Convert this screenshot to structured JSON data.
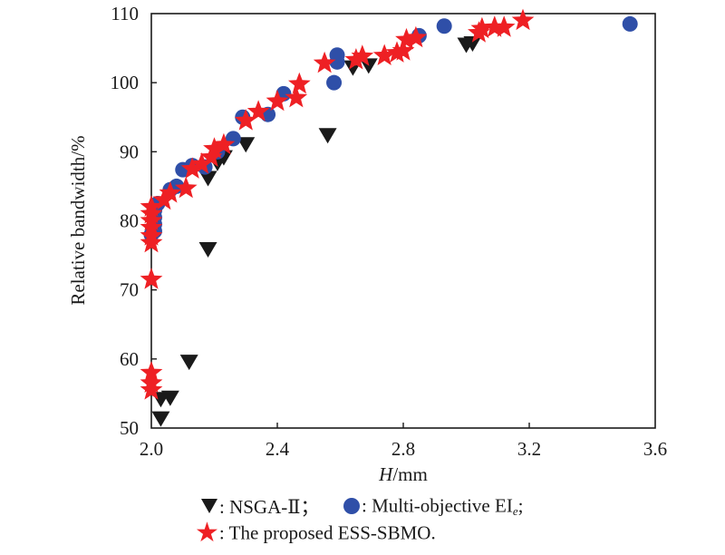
{
  "chart_data": {
    "type": "scatter",
    "title": "",
    "xlabel_italic": "H",
    "xlabel_rest": "/mm",
    "ylabel": "Relative bandwidth/%",
    "xlim": [
      2.0,
      3.6
    ],
    "ylim": [
      50,
      110
    ],
    "xticks": [
      "2.0",
      "2.4",
      "2.8",
      "3.2",
      "3.6"
    ],
    "xtick_values": [
      2.0,
      2.4,
      2.8,
      3.2,
      3.6
    ],
    "yticks": [
      "50",
      "60",
      "70",
      "80",
      "90",
      "100",
      "110"
    ],
    "ytick_values": [
      50,
      60,
      70,
      80,
      90,
      100,
      110
    ],
    "grid": false,
    "legend_position": "bottom",
    "series": [
      {
        "name": "NSGA-Ⅱ",
        "marker": "triangle-down",
        "color": "#1a1a1a",
        "points": [
          [
            2.03,
            51.5
          ],
          [
            2.03,
            54.3
          ],
          [
            2.06,
            54.5
          ],
          [
            2.12,
            59.7
          ],
          [
            2.18,
            76.0
          ],
          [
            2.18,
            86.3
          ],
          [
            2.21,
            88.5
          ],
          [
            2.23,
            89.3
          ],
          [
            2.3,
            91.2
          ],
          [
            2.56,
            92.5
          ],
          [
            2.64,
            102.3
          ],
          [
            2.69,
            102.6
          ],
          [
            3.0,
            105.6
          ],
          [
            3.02,
            105.8
          ]
        ]
      },
      {
        "name": "Multi-objective EI",
        "name_sub": "e",
        "marker": "circle",
        "color": "#2f4fa8",
        "points": [
          [
            2.0,
            78.0
          ],
          [
            2.01,
            78.5
          ],
          [
            2.01,
            79.5
          ],
          [
            2.01,
            80.5
          ],
          [
            2.01,
            81.5
          ],
          [
            2.02,
            82.5
          ],
          [
            2.06,
            84.5
          ],
          [
            2.08,
            85.0
          ],
          [
            2.1,
            87.4
          ],
          [
            2.13,
            88.0
          ],
          [
            2.17,
            87.8
          ],
          [
            2.21,
            90.0
          ],
          [
            2.26,
            91.9
          ],
          [
            2.29,
            95.0
          ],
          [
            2.37,
            95.4
          ],
          [
            2.42,
            98.4
          ],
          [
            2.58,
            100.0
          ],
          [
            2.59,
            103.0
          ],
          [
            2.59,
            104.0
          ],
          [
            2.85,
            106.8
          ],
          [
            2.93,
            108.2
          ],
          [
            3.52,
            108.5
          ]
        ]
      },
      {
        "name": "The proposed ESS-SBMO.",
        "marker": "star",
        "color": "#ee2024",
        "points": [
          [
            2.0,
            55.5
          ],
          [
            2.0,
            56.5
          ],
          [
            2.0,
            58.0
          ],
          [
            2.0,
            71.5
          ],
          [
            2.0,
            76.8
          ],
          [
            2.0,
            77.8
          ],
          [
            2.0,
            79.0
          ],
          [
            2.0,
            80.0
          ],
          [
            2.0,
            81.0
          ],
          [
            2.0,
            82.0
          ],
          [
            2.04,
            83.0
          ],
          [
            2.06,
            84.0
          ],
          [
            2.11,
            84.7
          ],
          [
            2.13,
            87.5
          ],
          [
            2.16,
            88.2
          ],
          [
            2.19,
            89.2
          ],
          [
            2.2,
            90.4
          ],
          [
            2.23,
            91.0
          ],
          [
            2.3,
            94.5
          ],
          [
            2.34,
            95.8
          ],
          [
            2.4,
            97.3
          ],
          [
            2.46,
            97.8
          ],
          [
            2.47,
            99.8
          ],
          [
            2.55,
            102.8
          ],
          [
            2.65,
            103.3
          ],
          [
            2.67,
            103.8
          ],
          [
            2.74,
            103.9
          ],
          [
            2.78,
            104.3
          ],
          [
            2.8,
            104.6
          ],
          [
            2.81,
            106.2
          ],
          [
            2.84,
            106.5
          ],
          [
            3.04,
            107.2
          ],
          [
            3.05,
            107.8
          ],
          [
            3.09,
            108.0
          ],
          [
            3.12,
            108.0
          ],
          [
            3.18,
            109.0
          ]
        ]
      }
    ]
  },
  "legend": {
    "row1_item1": ": NSGA-Ⅱ；",
    "row1_item2_main": ": Multi-objective EI",
    "row1_item2_sub": "e",
    "row1_item2_tail": ";",
    "row2_item1": ": The proposed ESS-SBMO."
  }
}
